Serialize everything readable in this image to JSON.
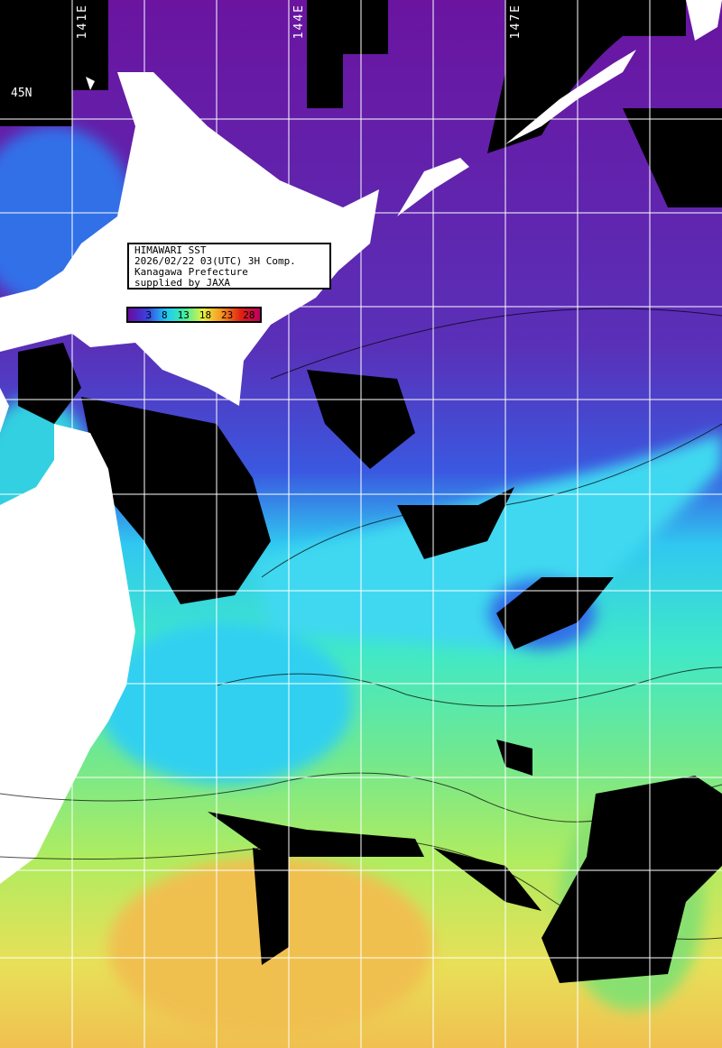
{
  "map": {
    "info_box": {
      "lines": [
        "HIMAWARI SST",
        "2026/02/22 03(UTC) 3H Comp.",
        "Kanagawa Prefecture",
        "supplied by JAXA"
      ]
    },
    "colorbar": {
      "ticks": [
        "3",
        "8",
        "13",
        "18",
        "23",
        "28"
      ],
      "colors": [
        "#6a0aa0",
        "#3a40e0",
        "#20c8f8",
        "#40f0a0",
        "#e8f040",
        "#f89020",
        "#e02010",
        "#c00060"
      ]
    },
    "longitude_labels": [
      "141E",
      "144E",
      "147E"
    ],
    "latitude_labels": [
      "45N"
    ],
    "colors": {
      "land": "#ffffff",
      "cloud_missing": "#000000",
      "grid": "#ffffff"
    }
  }
}
